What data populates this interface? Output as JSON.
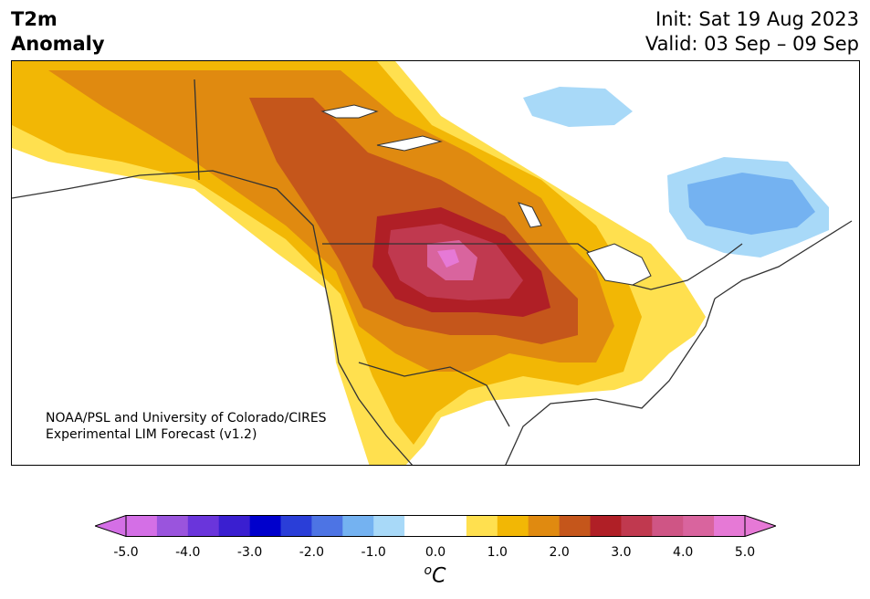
{
  "header": {
    "title_line1": "T2m",
    "title_line2": "Anomaly",
    "init": "Init: Sat 19 Aug 2023",
    "valid": "Valid: 03 Sep – 09 Sep"
  },
  "credit": {
    "line1": "NOAA/PSL and University of Colorado/CIRES",
    "line2": "Experimental LIM Forecast (v1.2)"
  },
  "colorbar": {
    "ticks": [
      "-5.0",
      "-4.0",
      "-3.0",
      "-2.0",
      "-1.0",
      "0.0",
      "1.0",
      "2.0",
      "3.0",
      "4.0",
      "5.0"
    ],
    "unit_base": "C",
    "unit_sup": "o",
    "colors": [
      "#d46fe6",
      "#9a54dd",
      "#6a35db",
      "#3a1fd0",
      "#0000cc",
      "#2a3ed8",
      "#4d74e4",
      "#74b2f1",
      "#a8d9f8",
      "#ffffff",
      "#ffffff",
      "#ffe04f",
      "#f2b705",
      "#e08a10",
      "#c5561b",
      "#b01f26",
      "#c0394f",
      "#cf5585",
      "#d9649e",
      "#e679d6"
    ],
    "extend_low_color": "#d46fe6",
    "extend_high_color": "#e679d6"
  }
}
